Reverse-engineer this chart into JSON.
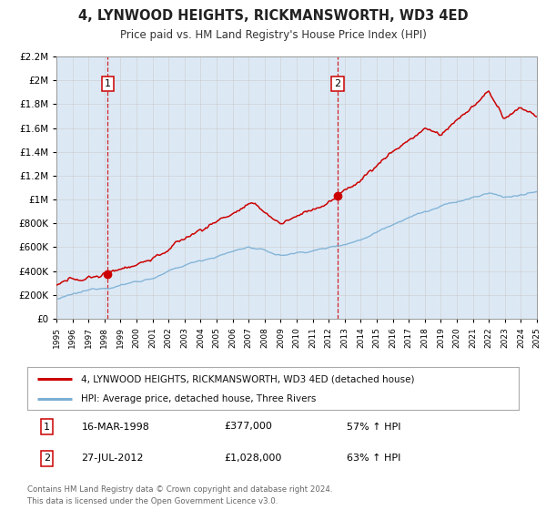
{
  "title": "4, LYNWOOD HEIGHTS, RICKMANSWORTH, WD3 4ED",
  "subtitle": "Price paid vs. HM Land Registry's House Price Index (HPI)",
  "legend_line1": "4, LYNWOOD HEIGHTS, RICKMANSWORTH, WD3 4ED (detached house)",
  "legend_line2": "HPI: Average price, detached house, Three Rivers",
  "sale1_date": "16-MAR-1998",
  "sale1_price": "£377,000",
  "sale1_hpi": "57% ↑ HPI",
  "sale1_year": 1998.21,
  "sale1_value": 377000,
  "sale2_date": "27-JUL-2012",
  "sale2_price": "£1,028,000",
  "sale2_hpi": "63% ↑ HPI",
  "sale2_year": 2012.56,
  "sale2_value": 1028000,
  "footer_line1": "Contains HM Land Registry data © Crown copyright and database right 2024.",
  "footer_line2": "This data is licensed under the Open Government Licence v3.0.",
  "red_color": "#cc0000",
  "blue_color": "#7bafd4",
  "background_color": "#dce9f5",
  "plot_bg_color": "#ffffff",
  "grid_color": "#cccccc",
  "dashed_line_color": "#cc0000",
  "ylim_min": 0,
  "ylim_max": 2200000,
  "xlim_min": 1995,
  "xlim_max": 2025,
  "yticks": [
    0,
    200000,
    400000,
    600000,
    800000,
    1000000,
    1200000,
    1400000,
    1600000,
    1800000,
    2000000,
    2200000
  ]
}
